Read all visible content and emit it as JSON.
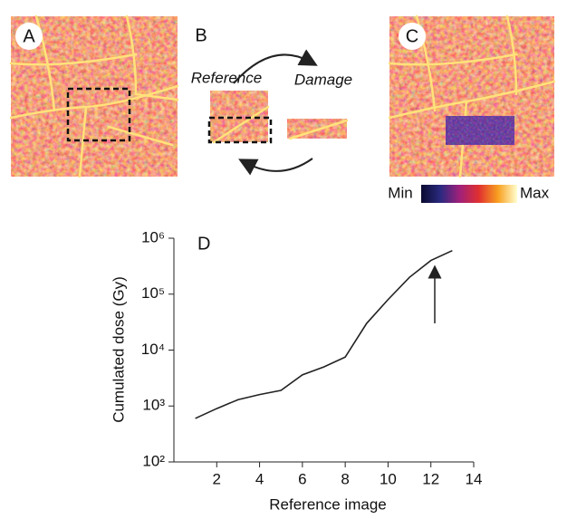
{
  "panels": {
    "labels": [
      "A",
      "B",
      "C"
    ],
    "reference": "Reference",
    "damage": "Damage",
    "colorbar": [
      "Min",
      "Max"
    ]
  },
  "chart_data": {
    "type": "line",
    "annotations": [
      "D"
    ],
    "xlabel": "Reference image",
    "ylabel": "Cumulated dose (Gy)",
    "x": [
      1,
      2,
      3,
      4,
      5,
      6,
      7,
      8,
      9,
      10,
      11,
      12,
      13
    ],
    "values": [
      600,
      900,
      1300,
      1600,
      1900,
      3600,
      5000,
      7500,
      30000,
      80000,
      200000,
      400000,
      600000
    ],
    "color": "#222222",
    "log_scale_y": true,
    "xlim": [
      0,
      14
    ],
    "xticks": [
      2,
      4,
      6,
      8,
      10,
      12,
      14
    ],
    "ylim": [
      100,
      1000000
    ],
    "yticks": [
      {
        "value": 100,
        "label": "10²"
      },
      {
        "value": 1000,
        "label": "10³"
      },
      {
        "value": 10000,
        "label": "10⁴"
      },
      {
        "value": 100000,
        "label": "10⁵"
      },
      {
        "value": 1000000,
        "label": "10⁶"
      }
    ]
  }
}
